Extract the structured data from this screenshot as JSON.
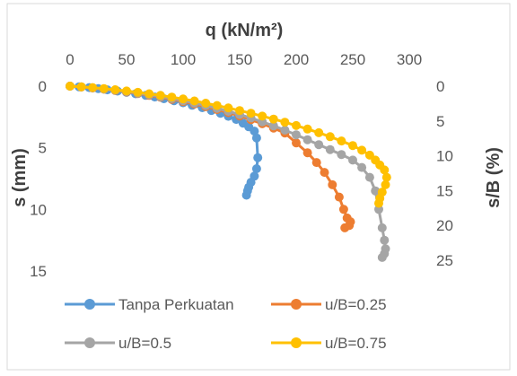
{
  "chart_data": {
    "type": "scatter",
    "title": "",
    "xlabel": "q (kN/m²)",
    "ylabel": "s (mm)",
    "y2label": "s/B (%)",
    "xlim": [
      0,
      300
    ],
    "ylim": [
      0,
      15
    ],
    "y2lim": [
      0,
      25
    ],
    "x_ticks": [
      "0",
      "50",
      "100",
      "150",
      "200",
      "250",
      "300"
    ],
    "y_ticks": [
      "0",
      "5",
      "10",
      "15"
    ],
    "y2_ticks": [
      "0",
      "5",
      "10",
      "15",
      "20",
      "25"
    ],
    "x_axis_position": "top",
    "y_inverted": true,
    "grid": false,
    "legend_position": "bottom",
    "series": [
      {
        "name": "Tanpa Perkuatan",
        "color": "#5B9BD5",
        "x": [
          0,
          8,
          17,
          25,
          33,
          42,
          50,
          58,
          67,
          75,
          83,
          92,
          100,
          108,
          117,
          125,
          133,
          140,
          147,
          153,
          158,
          163,
          165,
          166,
          165,
          163,
          160,
          158,
          157,
          156
        ],
        "y": [
          0,
          0.05,
          0.12,
          0.2,
          0.3,
          0.4,
          0.5,
          0.62,
          0.75,
          0.88,
          1.02,
          1.18,
          1.35,
          1.55,
          1.75,
          1.97,
          2.2,
          2.45,
          2.7,
          3.0,
          3.3,
          3.65,
          4.2,
          5.8,
          6.7,
          7.3,
          7.8,
          8.2,
          8.5,
          8.85
        ]
      },
      {
        "name": "u/B=0.25",
        "color": "#ED7D31",
        "x": [
          0,
          10,
          20,
          30,
          40,
          50,
          60,
          70,
          80,
          90,
          100,
          110,
          120,
          130,
          140,
          150,
          160,
          170,
          180,
          190,
          200,
          210,
          218,
          225,
          232,
          238,
          242,
          245,
          248,
          247,
          243
        ],
        "y": [
          0,
          0.07,
          0.15,
          0.25,
          0.35,
          0.47,
          0.6,
          0.75,
          0.9,
          1.07,
          1.25,
          1.45,
          1.67,
          1.9,
          2.15,
          2.42,
          2.72,
          3.05,
          3.4,
          3.8,
          4.6,
          5.4,
          6.2,
          7.0,
          8.0,
          9.0,
          10.0,
          10.7,
          11.0,
          11.3,
          11.5
        ]
      },
      {
        "name": "u/B=0.5",
        "color": "#A5A5A5",
        "x": [
          0,
          10,
          20,
          30,
          40,
          50,
          60,
          70,
          80,
          90,
          100,
          110,
          120,
          130,
          140,
          150,
          160,
          170,
          180,
          190,
          200,
          210,
          220,
          230,
          240,
          250,
          258,
          265,
          270,
          273,
          276,
          278,
          279,
          278,
          276
        ],
        "y": [
          0,
          0.06,
          0.14,
          0.23,
          0.33,
          0.44,
          0.56,
          0.7,
          0.85,
          1.0,
          1.18,
          1.37,
          1.57,
          1.8,
          2.04,
          2.3,
          2.58,
          2.9,
          3.22,
          3.57,
          3.95,
          4.35,
          4.75,
          5.15,
          5.55,
          6.0,
          6.6,
          7.4,
          8.5,
          10.0,
          11.5,
          12.5,
          13.2,
          13.6,
          13.9
        ]
      },
      {
        "name": "u/B=0.75",
        "color": "#FFC000",
        "x": [
          0,
          10,
          20,
          30,
          40,
          50,
          60,
          70,
          80,
          90,
          100,
          110,
          120,
          130,
          140,
          150,
          160,
          170,
          180,
          190,
          200,
          210,
          220,
          230,
          240,
          250,
          258,
          265,
          270,
          274,
          278,
          280,
          279,
          276,
          274,
          273
        ],
        "y": [
          0,
          0.05,
          0.12,
          0.2,
          0.29,
          0.39,
          0.5,
          0.62,
          0.75,
          0.89,
          1.04,
          1.2,
          1.38,
          1.57,
          1.77,
          1.98,
          2.2,
          2.43,
          2.67,
          2.93,
          3.2,
          3.48,
          3.78,
          4.1,
          4.45,
          4.82,
          5.2,
          5.6,
          6.0,
          6.4,
          6.8,
          7.4,
          8.0,
          8.6,
          9.1,
          9.5
        ]
      }
    ]
  }
}
